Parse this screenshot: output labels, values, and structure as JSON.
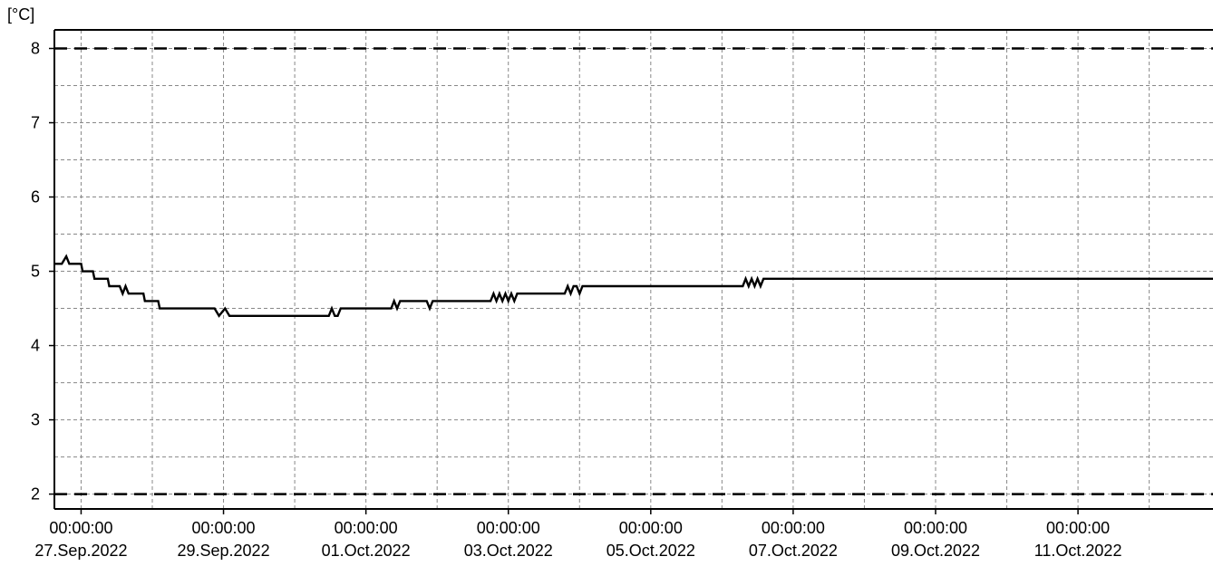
{
  "chart_data": {
    "type": "line",
    "ylabel": "[°C]",
    "xlabel": "",
    "title": "",
    "ylim": [
      1.8,
      8.25
    ],
    "y_ticks": [
      2,
      3,
      4,
      5,
      6,
      7,
      8
    ],
    "x_range": [
      "2022-09-26T15:00",
      "2022-10-12T21:30"
    ],
    "x_ticks": [
      {
        "x": "2022-09-27T00:00",
        "time": "00:00:00",
        "date": "27.Sep.2022"
      },
      {
        "x": "2022-09-29T00:00",
        "time": "00:00:00",
        "date": "29.Sep.2022"
      },
      {
        "x": "2022-10-01T00:00",
        "time": "00:00:00",
        "date": "01.Oct.2022"
      },
      {
        "x": "2022-10-03T00:00",
        "time": "00:00:00",
        "date": "03.Oct.2022"
      },
      {
        "x": "2022-10-05T00:00",
        "time": "00:00:00",
        "date": "05.Oct.2022"
      },
      {
        "x": "2022-10-07T00:00",
        "time": "00:00:00",
        "date": "07.Oct.2022"
      },
      {
        "x": "2022-10-09T00:00",
        "time": "00:00:00",
        "date": "09.Oct.2022"
      },
      {
        "x": "2022-10-11T00:00",
        "time": "00:00:00",
        "date": "11.Oct.2022"
      }
    ],
    "grid": true,
    "reference_lines": [
      {
        "y": 8,
        "style": "dashed"
      },
      {
        "y": 2,
        "style": "dashed"
      }
    ],
    "series": [
      {
        "color": "#000000",
        "points": [
          [
            "2022-09-26T15:00",
            5.1
          ],
          [
            "2022-09-26T17:30",
            5.1
          ],
          [
            "2022-09-26T19:00",
            5.2
          ],
          [
            "2022-09-26T20:00",
            5.1
          ],
          [
            "2022-09-27T00:00",
            5.1
          ],
          [
            "2022-09-27T00:30",
            5.0
          ],
          [
            "2022-09-27T04:00",
            5.0
          ],
          [
            "2022-09-27T04:30",
            4.9
          ],
          [
            "2022-09-27T09:00",
            4.9
          ],
          [
            "2022-09-27T09:30",
            4.8
          ],
          [
            "2022-09-27T13:00",
            4.8
          ],
          [
            "2022-09-27T14:00",
            4.7
          ],
          [
            "2022-09-27T15:00",
            4.8
          ],
          [
            "2022-09-27T16:00",
            4.7
          ],
          [
            "2022-09-27T21:00",
            4.7
          ],
          [
            "2022-09-27T21:30",
            4.6
          ],
          [
            "2022-09-28T02:00",
            4.6
          ],
          [
            "2022-09-28T02:30",
            4.5
          ],
          [
            "2022-09-28T21:00",
            4.5
          ],
          [
            "2022-09-28T22:30",
            4.4
          ],
          [
            "2022-09-29T00:30",
            4.5
          ],
          [
            "2022-09-29T02:00",
            4.4
          ],
          [
            "2022-09-30T11:30",
            4.4
          ],
          [
            "2022-09-30T12:30",
            4.5
          ],
          [
            "2022-09-30T13:30",
            4.4
          ],
          [
            "2022-09-30T14:30",
            4.4
          ],
          [
            "2022-09-30T15:30",
            4.5
          ],
          [
            "2022-10-01T08:30",
            4.5
          ],
          [
            "2022-10-01T09:30",
            4.6
          ],
          [
            "2022-10-01T10:30",
            4.5
          ],
          [
            "2022-10-01T11:30",
            4.6
          ],
          [
            "2022-10-01T20:30",
            4.6
          ],
          [
            "2022-10-01T21:30",
            4.5
          ],
          [
            "2022-10-01T22:30",
            4.6
          ],
          [
            "2022-10-02T18:00",
            4.6
          ],
          [
            "2022-10-02T19:00",
            4.7
          ],
          [
            "2022-10-02T20:00",
            4.6
          ],
          [
            "2022-10-02T21:00",
            4.7
          ],
          [
            "2022-10-02T22:00",
            4.6
          ],
          [
            "2022-10-02T23:00",
            4.7
          ],
          [
            "2022-10-03T00:00",
            4.6
          ],
          [
            "2022-10-03T01:00",
            4.7
          ],
          [
            "2022-10-03T02:00",
            4.6
          ],
          [
            "2022-10-03T03:00",
            4.7
          ],
          [
            "2022-10-03T19:00",
            4.7
          ],
          [
            "2022-10-03T20:00",
            4.8
          ],
          [
            "2022-10-03T21:00",
            4.7
          ],
          [
            "2022-10-03T22:00",
            4.8
          ],
          [
            "2022-10-03T23:00",
            4.8
          ],
          [
            "2022-10-04T00:00",
            4.7
          ],
          [
            "2022-10-04T01:00",
            4.8
          ],
          [
            "2022-10-06T07:00",
            4.8
          ],
          [
            "2022-10-06T08:00",
            4.9
          ],
          [
            "2022-10-06T09:00",
            4.8
          ],
          [
            "2022-10-06T10:00",
            4.9
          ],
          [
            "2022-10-06T11:00",
            4.8
          ],
          [
            "2022-10-06T12:00",
            4.9
          ],
          [
            "2022-10-06T13:00",
            4.8
          ],
          [
            "2022-10-06T14:00",
            4.9
          ],
          [
            "2022-10-12T21:30",
            4.9
          ]
        ]
      }
    ]
  }
}
